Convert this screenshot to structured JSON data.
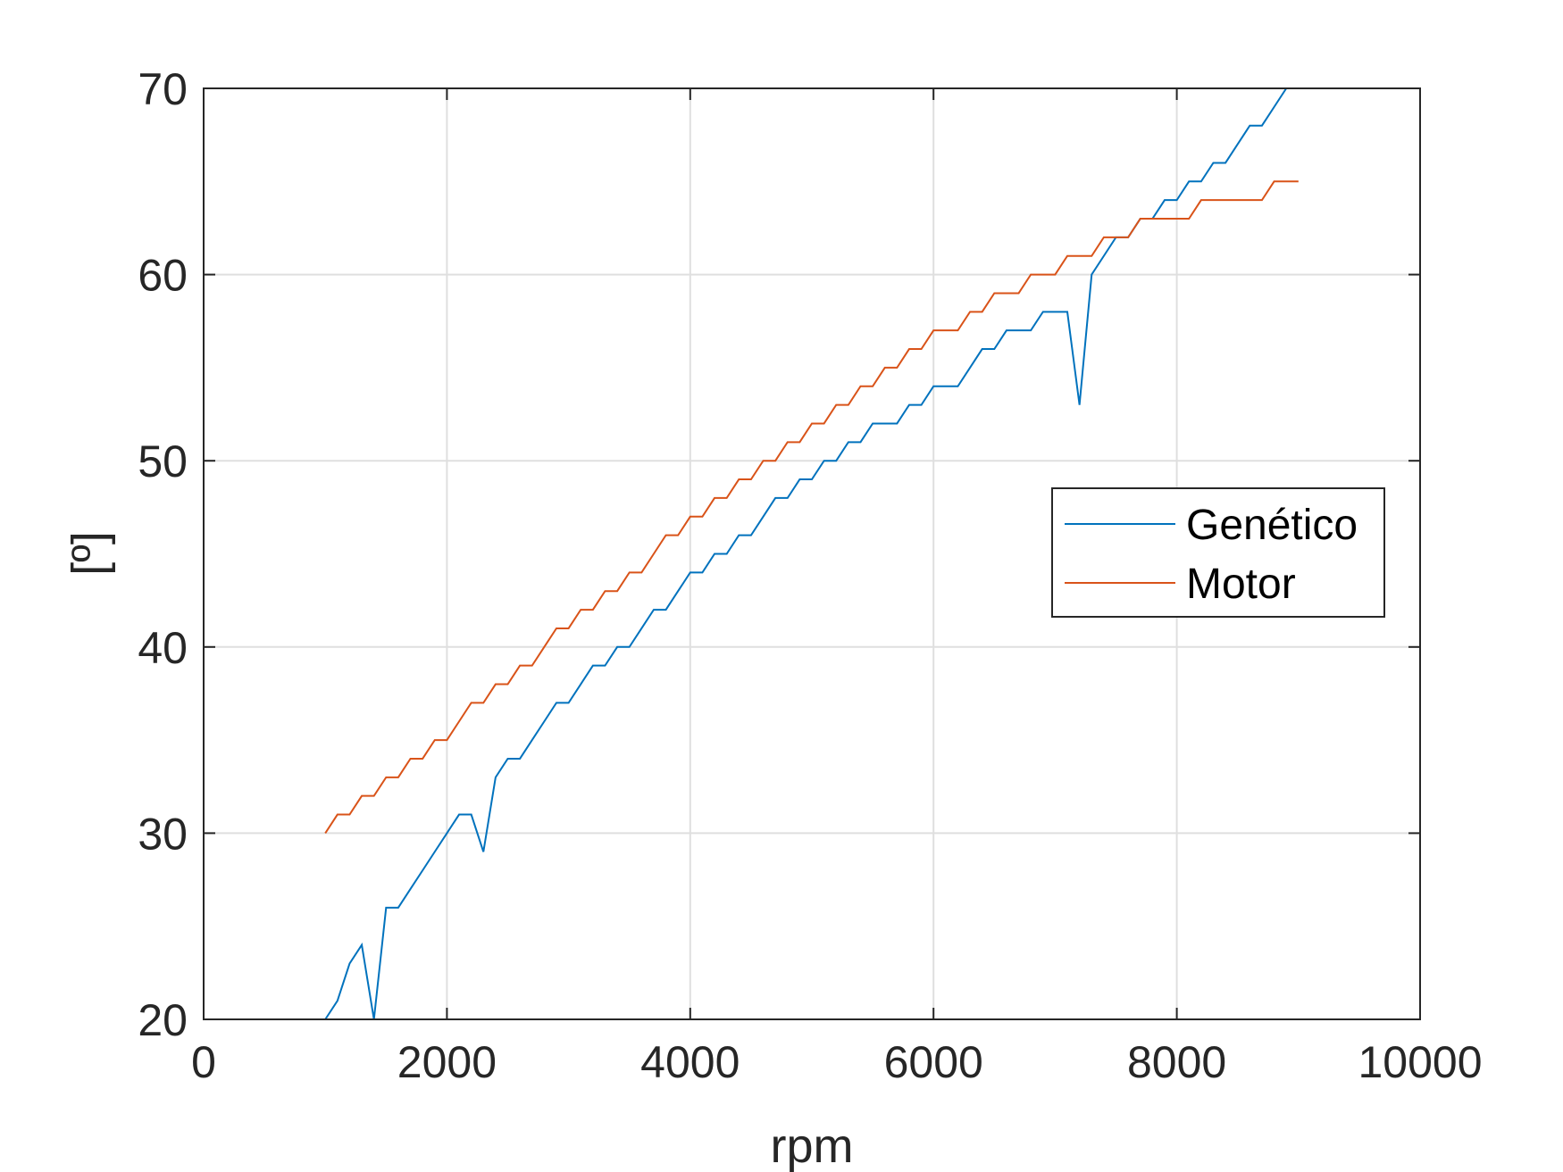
{
  "chart_data": {
    "type": "line",
    "title": "",
    "xlabel": "rpm",
    "ylabel": "[º]",
    "xlim": [
      0,
      10000
    ],
    "ylim": [
      20,
      70
    ],
    "xticks": [
      0,
      2000,
      4000,
      6000,
      8000,
      10000
    ],
    "yticks": [
      20,
      30,
      40,
      50,
      60,
      70
    ],
    "xtick_labels": [
      "0",
      "2000",
      "4000",
      "6000",
      "8000",
      "10000"
    ],
    "ytick_labels": [
      "20",
      "30",
      "40",
      "50",
      "60",
      "70"
    ],
    "grid": true,
    "legend_position": "right",
    "series": [
      {
        "name": "Genético",
        "color": "#0072BD",
        "x": [
          1000,
          1100,
          1200,
          1300,
          1400,
          1500,
          1600,
          1700,
          1800,
          1900,
          2000,
          2100,
          2200,
          2300,
          2400,
          2500,
          2600,
          2700,
          2800,
          2900,
          3000,
          3100,
          3200,
          3300,
          3400,
          3500,
          3600,
          3700,
          3800,
          3900,
          4000,
          4100,
          4200,
          4300,
          4400,
          4500,
          4600,
          4700,
          4800,
          4900,
          5000,
          5100,
          5200,
          5300,
          5400,
          5500,
          5600,
          5700,
          5800,
          5900,
          6000,
          6100,
          6200,
          6300,
          6400,
          6500,
          6600,
          6700,
          6800,
          6900,
          7000,
          7100,
          7200,
          7300,
          7400,
          7500,
          7600,
          7700,
          7800,
          7900,
          8000,
          8100,
          8200,
          8300,
          8400,
          8500,
          8600,
          8700,
          8800,
          8900,
          9000
        ],
        "y": [
          20,
          21,
          23,
          24,
          20,
          26,
          26,
          27,
          28,
          29,
          30,
          31,
          31,
          29,
          33,
          34,
          34,
          35,
          36,
          37,
          37,
          38,
          39,
          39,
          40,
          40,
          41,
          42,
          42,
          43,
          44,
          44,
          45,
          45,
          46,
          46,
          47,
          48,
          48,
          49,
          49,
          50,
          50,
          51,
          51,
          52,
          52,
          52,
          53,
          53,
          54,
          54,
          54,
          55,
          56,
          56,
          57,
          57,
          57,
          58,
          58,
          58,
          53,
          60,
          61,
          62,
          62,
          63,
          63,
          64,
          64,
          65,
          65,
          66,
          66,
          67,
          68,
          68,
          69,
          70,
          70
        ]
      },
      {
        "name": "Motor",
        "color": "#D95319",
        "x": [
          1000,
          1100,
          1200,
          1300,
          1400,
          1500,
          1600,
          1700,
          1800,
          1900,
          2000,
          2100,
          2200,
          2300,
          2400,
          2500,
          2600,
          2700,
          2800,
          2900,
          3000,
          3100,
          3200,
          3300,
          3400,
          3500,
          3600,
          3700,
          3800,
          3900,
          4000,
          4100,
          4200,
          4300,
          4400,
          4500,
          4600,
          4700,
          4800,
          4900,
          5000,
          5100,
          5200,
          5300,
          5400,
          5500,
          5600,
          5700,
          5800,
          5900,
          6000,
          6100,
          6200,
          6300,
          6400,
          6500,
          6600,
          6700,
          6800,
          6900,
          7000,
          7100,
          7200,
          7300,
          7400,
          7500,
          7600,
          7700,
          7800,
          7900,
          8000,
          8100,
          8200,
          8300,
          8400,
          8500,
          8600,
          8700,
          8800,
          8900,
          9000
        ],
        "y": [
          30,
          31,
          31,
          32,
          32,
          33,
          33,
          34,
          34,
          35,
          35,
          36,
          37,
          37,
          38,
          38,
          39,
          39,
          40,
          41,
          41,
          42,
          42,
          43,
          43,
          44,
          44,
          45,
          46,
          46,
          47,
          47,
          48,
          48,
          49,
          49,
          50,
          50,
          51,
          51,
          52,
          52,
          53,
          53,
          54,
          54,
          55,
          55,
          56,
          56,
          57,
          57,
          57,
          58,
          58,
          59,
          59,
          59,
          60,
          60,
          60,
          61,
          61,
          61,
          62,
          62,
          62,
          63,
          63,
          63,
          63,
          63,
          64,
          64,
          64,
          64,
          64,
          64,
          65,
          65,
          65
        ]
      }
    ]
  }
}
